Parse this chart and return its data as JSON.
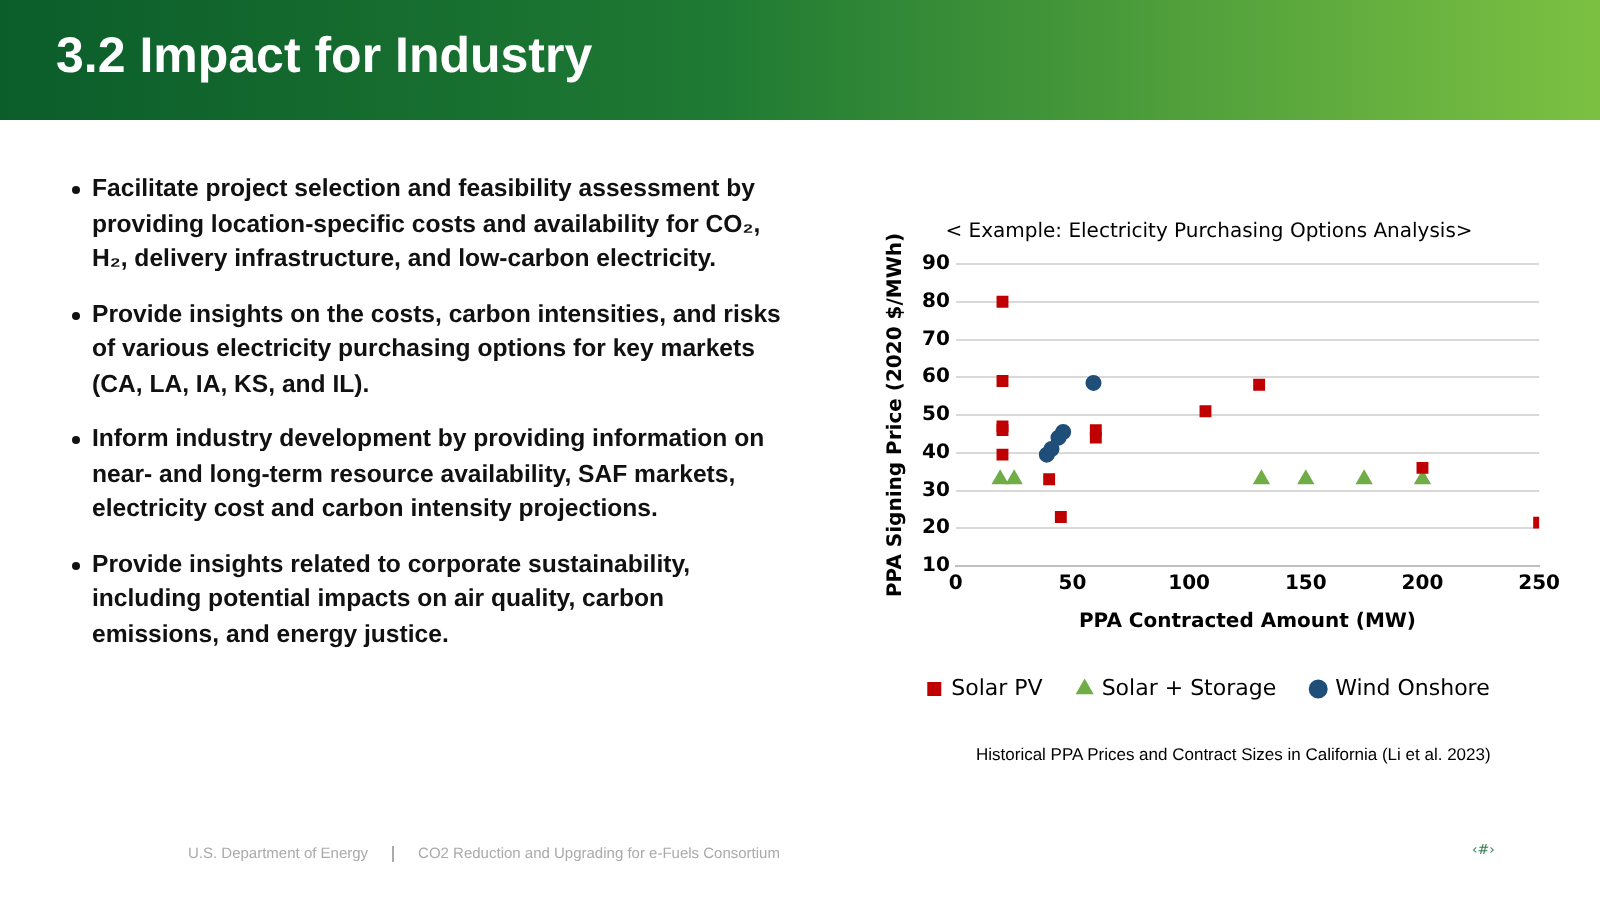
{
  "chart_data": {
    "type": "scatter",
    "title": "< Example: Electricity Purchasing Options Analysis>",
    "xlabel": "PPA Contracted Amount (MW)",
    "ylabel": "PPA Signing Price (2020 $/MWh)",
    "xlim": [
      0,
      250
    ],
    "xticks": [
      0,
      50,
      100,
      150,
      200,
      250
    ],
    "ylim": [
      10,
      90
    ],
    "yticks": [
      10,
      20,
      30,
      40,
      50,
      60,
      70,
      80,
      90
    ],
    "grid": "y",
    "legend": "bottom",
    "series": [
      {
        "name": "Solar PV",
        "color": "#c00000",
        "marker": "square",
        "x": [
          20,
          20,
          20,
          20,
          20,
          40,
          45,
          60,
          60,
          107,
          130,
          200,
          250
        ],
        "values": [
          80,
          59,
          47,
          46,
          39.5,
          33,
          23,
          46,
          44,
          51,
          58,
          36,
          21.5
        ]
      },
      {
        "name": "Solar + Storage",
        "color": "#70ad47",
        "marker": "triangle",
        "x": [
          19,
          25,
          131,
          150,
          175,
          200
        ],
        "values": [
          33,
          33,
          33,
          33,
          33,
          33
        ]
      },
      {
        "name": "Wind Onshore",
        "color": "#1f4e79",
        "marker": "circle",
        "x": [
          39,
          41,
          44,
          46,
          59
        ],
        "values": [
          39.5,
          41,
          44,
          45.5,
          58.5
        ]
      }
    ],
    "subtitle": "3.2  Impact for Industry",
    "annotations": [
      "Facilitate project selection and feasibility assessment by providing location-specific costs and availability for CO₂, H₂, delivery infrastructure, and low-carbon electricity.",
      "Provide insights on the costs, carbon intensities, and risks of various electricity purchasing options for key markets (CA, LA, IA, KS, and IL).",
      "Inform industry development by providing information on near- and long-term resource availability, SAF markets, electricity cost and carbon intensity projections.",
      "Provide insights related to corporate sustainability, including potential impacts on air quality, carbon emissions, and energy justice.",
      "Historical PPA Prices and Contract Sizes in California (Li et al. 2023)",
      "U.S. Department of Energy",
      "CO2 Reduction and Upgrading for e-Fuels Consortium",
      "‹#›"
    ]
  }
}
